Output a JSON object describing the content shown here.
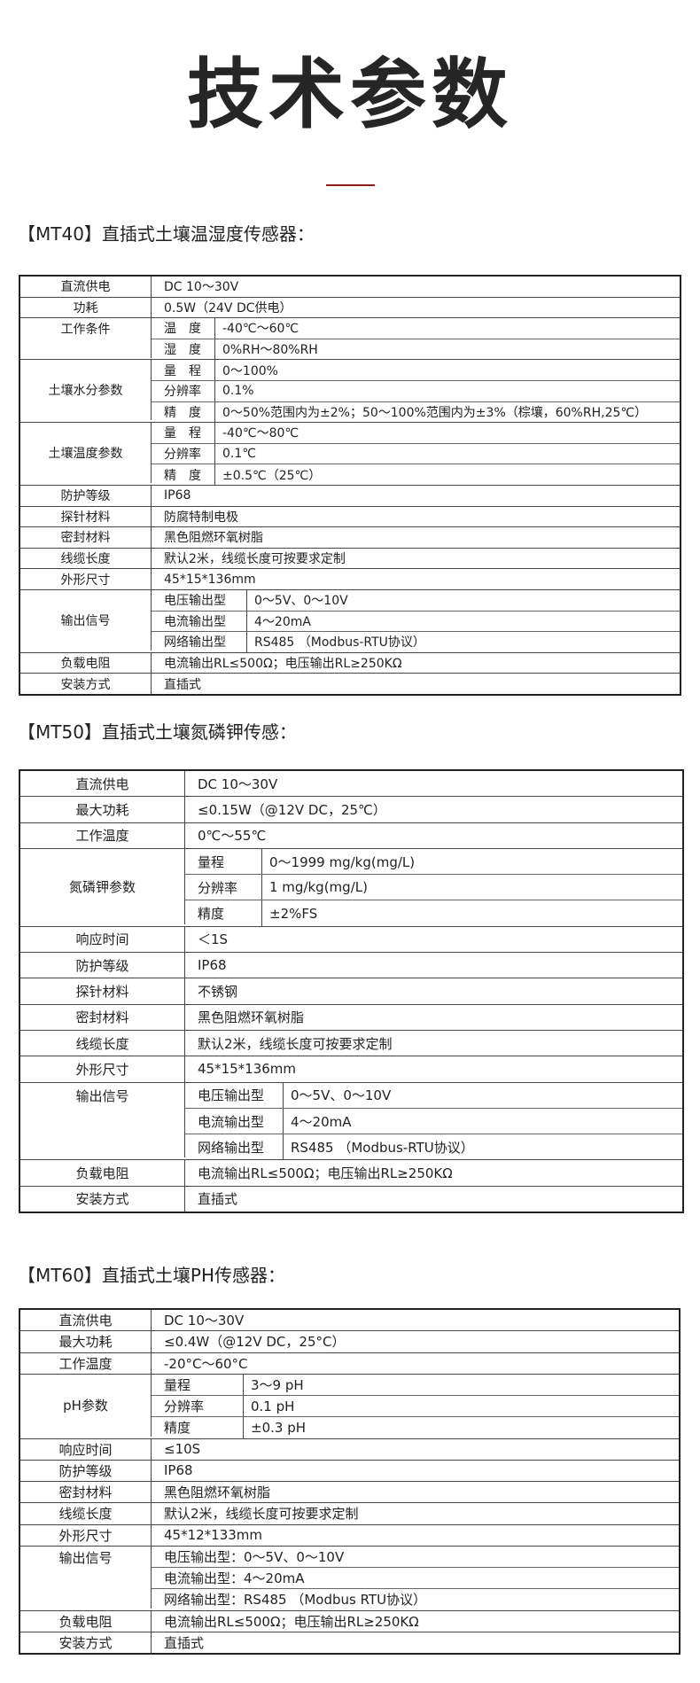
{
  "page_title": "技术参数",
  "accent_color": "#8b1c1c",
  "tables": [
    {
      "heading": "【MT40】直插式土壤温湿度传感器：",
      "rows": [
        {
          "label": "直流供电",
          "value": "DC 10～30V"
        },
        {
          "label": "功耗",
          "value": "0.5W（24V DC供电）"
        },
        {
          "label": "工作条件",
          "sub": [
            {
              "k": "温　度",
              "v": "-40℃～60℃"
            },
            {
              "k": "湿　度",
              "v": "0%RH～80%RH"
            }
          ]
        },
        {
          "label": "土壤水分参数",
          "sub": [
            {
              "k": "量　程",
              "v": "0～100%"
            },
            {
              "k": "分辨率",
              "v": "0.1%"
            },
            {
              "k": "精　度",
              "v": "0～50%范围内为±2%；50～100%范围内为±3%（棕壤，60%RH,25℃）"
            }
          ]
        },
        {
          "label": "土壤温度参数",
          "sub": [
            {
              "k": "量　程",
              "v": "-40℃～80℃"
            },
            {
              "k": "分辨率",
              "v": "0.1℃"
            },
            {
              "k": "精　度",
              "v": "±0.5℃（25℃）"
            }
          ]
        },
        {
          "label": "防护等级",
          "value": "IP68"
        },
        {
          "label": "探针材料",
          "value": "防腐特制电极"
        },
        {
          "label": "密封材料",
          "value": "黑色阻燃环氧树脂"
        },
        {
          "label": "线缆长度",
          "value": "默认2米，线缆长度可按要求定制"
        },
        {
          "label": "外形尺寸",
          "value": "45*15*136mm"
        },
        {
          "label": "输出信号",
          "sub": [
            {
              "k": "电压输出型",
              "v": "0～5V、0～10V"
            },
            {
              "k": "电流输出型",
              "v": "4～20mA"
            },
            {
              "k": "网络输出型",
              "v": "RS485 （Modbus-RTU协议）"
            }
          ]
        },
        {
          "label": "负载电阻",
          "value": "电流输出RL≤500Ω；电压输出RL≥250KΩ"
        },
        {
          "label": "安装方式",
          "value": "直插式"
        }
      ]
    },
    {
      "heading": "【MT50】直插式土壤氮磷钾传感：",
      "rows": [
        {
          "label": "直流供电",
          "value": "DC 10～30V"
        },
        {
          "label": "最大功耗",
          "value": "≤0.15W（@12V DC，25℃）"
        },
        {
          "label": "工作温度",
          "value": "0℃～55℃"
        },
        {
          "label": "氮磷钾参数",
          "sub": [
            {
              "k": "量程",
              "v": "0～1999 mg/kg(mg/L)"
            },
            {
              "k": "分辨率",
              "v": "1 mg/kg(mg/L)"
            },
            {
              "k": "精度",
              "v": "±2%FS"
            }
          ]
        },
        {
          "label": "响应时间",
          "value": "＜1S"
        },
        {
          "label": "防护等级",
          "value": "IP68"
        },
        {
          "label": "探针材料",
          "value": "不锈钢"
        },
        {
          "label": "密封材料",
          "value": "黑色阻燃环氧树脂"
        },
        {
          "label": "线缆长度",
          "value": "默认2米，线缆长度可按要求定制"
        },
        {
          "label": "外形尺寸",
          "value": "45*15*136mm"
        },
        {
          "label": "输出信号",
          "sub": [
            {
              "k": "电压输出型",
              "v": "0～5V、0～10V"
            },
            {
              "k": "电流输出型",
              "v": "4～20mA"
            },
            {
              "k": "网络输出型",
              "v": "RS485 （Modbus-RTU协议）"
            }
          ]
        },
        {
          "label": "负载电阻",
          "value": "电流输出RL≤500Ω；电压输出RL≥250KΩ"
        },
        {
          "label": "安装方式",
          "value": "直插式"
        }
      ]
    },
    {
      "heading": "【MT60】直插式土壤PH传感器：",
      "rows": [
        {
          "label": "直流供电",
          "value": "DC 10～30V"
        },
        {
          "label": "最大功耗",
          "value": "≤0.4W（@12V DC，25°C）"
        },
        {
          "label": "工作温度",
          "value": "-20°C～60°C"
        },
        {
          "label": "pH参数",
          "sub": [
            {
              "k": "量程",
              "v": "3～9 pH"
            },
            {
              "k": "分辨率",
              "v": "0.1 pH"
            },
            {
              "k": "精度",
              "v": "±0.3 pH"
            }
          ]
        },
        {
          "label": "响应时间",
          "value": "≤10S"
        },
        {
          "label": "防护等级",
          "value": "IP68"
        },
        {
          "label": "密封材料",
          "value": "黑色阻燃环氧树脂"
        },
        {
          "label": "线缆长度",
          "value": "默认2米，线缆长度可按要求定制"
        },
        {
          "label": "外形尺寸",
          "value": "45*12*133mm"
        },
        {
          "label": "输出信号",
          "sub": [
            {
              "v": "电压输出型：0～5V、0～10V"
            },
            {
              "v": "电流输出型：4～20mA"
            },
            {
              "v": "网络输出型：RS485 （Modbus RTU协议）"
            }
          ]
        },
        {
          "label": "负载电阻",
          "value": "电流输出RL≤500Ω；电压输出RL≥250KΩ"
        },
        {
          "label": "安装方式",
          "value": "直插式"
        }
      ]
    }
  ]
}
